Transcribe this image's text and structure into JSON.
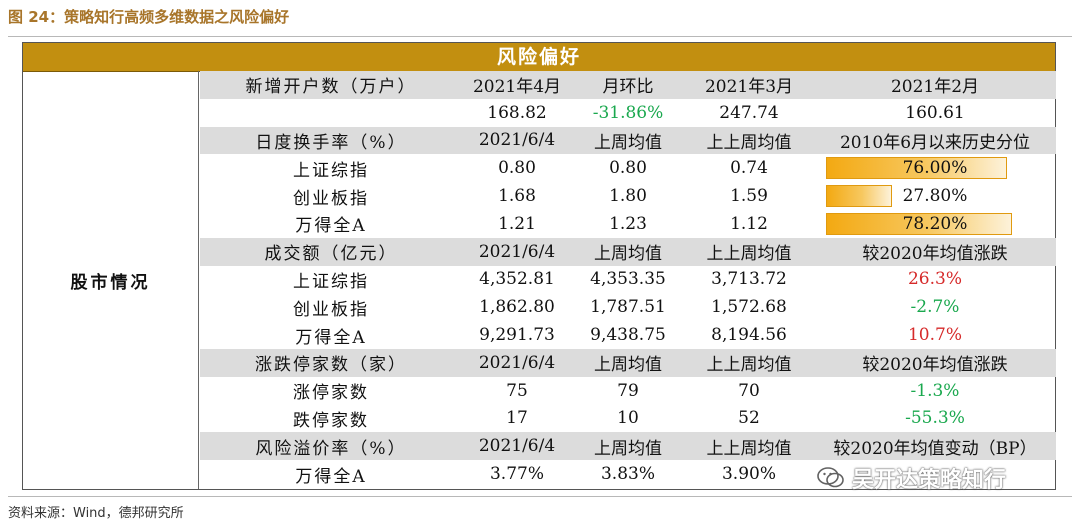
{
  "figure": {
    "title": "图 24：策略知行高频多维数据之风险偏好",
    "source": "资料来源：Wind，德邦研究所",
    "watermark": "吴开达策略知行"
  },
  "table": {
    "header": "风险偏好",
    "left_label": "股市情况",
    "rows": [
      {
        "type": "header",
        "cells": [
          "新增开户数（万户）",
          "2021年4月",
          "月环比",
          "2021年3月",
          "2021年2月"
        ]
      },
      {
        "type": "data",
        "cells": [
          "",
          "168.82",
          "-31.86%",
          "247.74",
          "160.61"
        ],
        "colors": [
          "",
          "",
          "neg",
          "",
          ""
        ]
      },
      {
        "type": "header",
        "cells": [
          "日度换手率（%）",
          "2021/6/4",
          "上周均值",
          "上上周均值",
          "2010年6月以来历史分位"
        ]
      },
      {
        "type": "bar",
        "cells": [
          "上证综指",
          "0.80",
          "0.80",
          "0.74",
          "76.00%"
        ],
        "fill": 0.76
      },
      {
        "type": "bar",
        "cells": [
          "创业板指",
          "1.68",
          "1.80",
          "1.59",
          "27.80%"
        ],
        "fill": 0.278
      },
      {
        "type": "bar",
        "cells": [
          "万得全A",
          "1.21",
          "1.23",
          "1.12",
          "78.20%"
        ],
        "fill": 0.782
      },
      {
        "type": "header",
        "cells": [
          "成交额（亿元）",
          "2021/6/4",
          "上周均值",
          "上上周均值",
          "较2020年均值涨跌"
        ]
      },
      {
        "type": "data",
        "cells": [
          "上证综指",
          "4,352.81",
          "4,353.35",
          "3,713.72",
          "26.3%"
        ],
        "colors": [
          "",
          "",
          "",
          "",
          "pos"
        ]
      },
      {
        "type": "data",
        "cells": [
          "创业板指",
          "1,862.80",
          "1,787.51",
          "1,572.68",
          "-2.7%"
        ],
        "colors": [
          "",
          "",
          "",
          "",
          "neg"
        ]
      },
      {
        "type": "data",
        "cells": [
          "万得全A",
          "9,291.73",
          "9,438.75",
          "8,194.56",
          "10.7%"
        ],
        "colors": [
          "",
          "",
          "",
          "",
          "pos"
        ]
      },
      {
        "type": "header",
        "cells": [
          "涨跌停家数（家）",
          "2021/6/4",
          "上周均值",
          "上上周均值",
          "较2020年均值涨跌"
        ]
      },
      {
        "type": "data",
        "cells": [
          "涨停家数",
          "75",
          "79",
          "70",
          "-1.3%"
        ],
        "colors": [
          "",
          "",
          "",
          "",
          "neg"
        ]
      },
      {
        "type": "data",
        "cells": [
          "跌停家数",
          "17",
          "10",
          "52",
          "-55.3%"
        ],
        "colors": [
          "",
          "",
          "",
          "",
          "neg"
        ]
      },
      {
        "type": "header",
        "cells": [
          "风险溢价率（%）",
          "2021/6/4",
          "上周均值",
          "上上周均值",
          "较2020年均值变动（BP）"
        ]
      },
      {
        "type": "data",
        "cells": [
          "万得全A",
          "3.77%",
          "3.83%",
          "3.90%",
          ""
        ],
        "colors": [
          "",
          "",
          "",
          "",
          ""
        ]
      }
    ]
  },
  "colors": {
    "header_bg": "#c28f10",
    "section_bg": "#dcdcdc",
    "positive": "#d62a2a",
    "negative": "#1aa84e",
    "bar": "#f3a912"
  }
}
